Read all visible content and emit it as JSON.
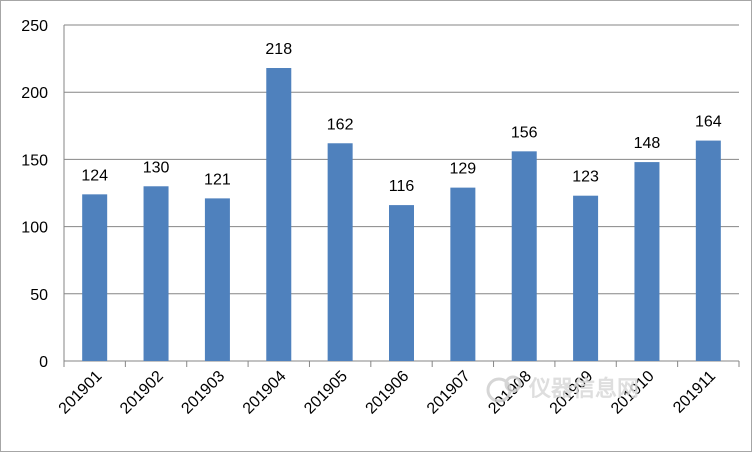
{
  "chart_data": {
    "type": "bar",
    "title": "",
    "xlabel": "",
    "ylabel": "",
    "categories": [
      "201901",
      "201902",
      "201903",
      "201904",
      "201905",
      "201906",
      "201907",
      "201908",
      "201909",
      "201910",
      "201911"
    ],
    "values": [
      124,
      130,
      121,
      218,
      162,
      116,
      129,
      156,
      123,
      148,
      164
    ],
    "ylim": [
      0,
      250
    ],
    "yticks": [
      0,
      50,
      100,
      150,
      200,
      250
    ],
    "grid": true,
    "legend": "none",
    "bar_color": "#4f81bd",
    "grid_color": "#868686"
  },
  "watermark": {
    "text": "仪器信息网"
  }
}
